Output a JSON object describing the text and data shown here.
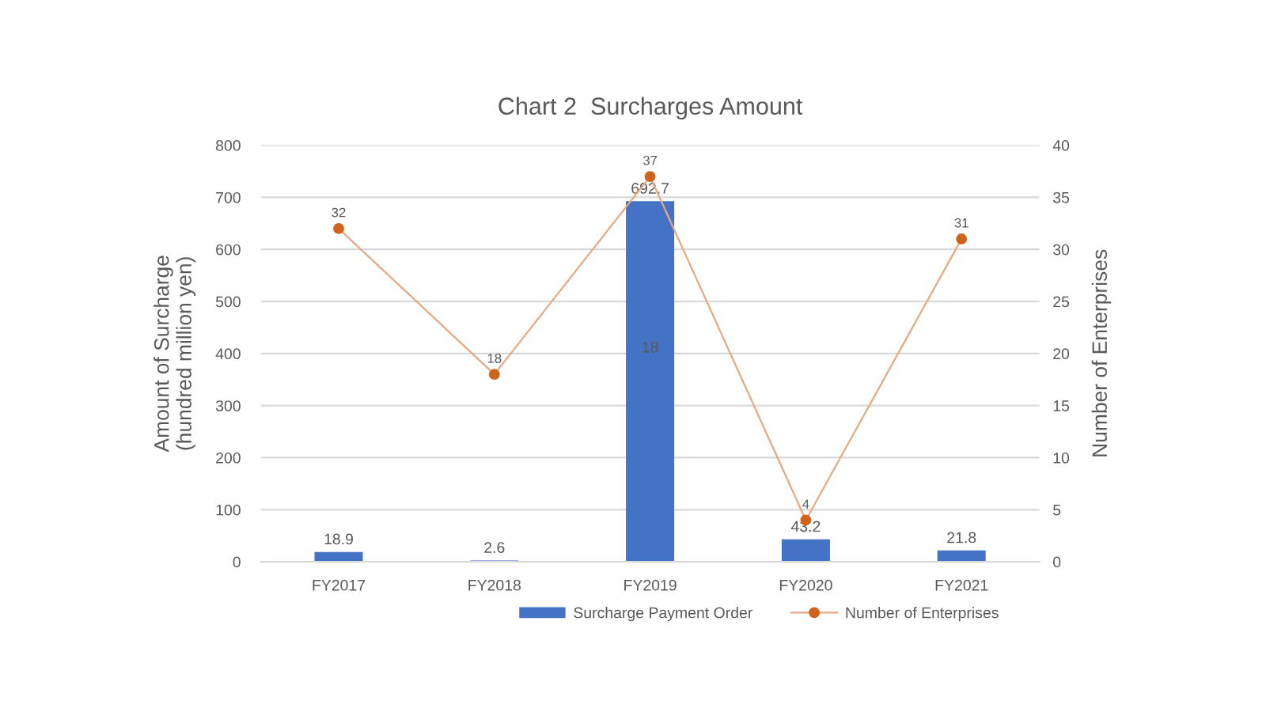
{
  "chart_data": {
    "type": "bar",
    "title": "Chart 2  Surcharges Amount",
    "ylabel": "Amount of Surcharge\n(hundred million yen)",
    "y2label": "Number of Enterprises",
    "categories": [
      "FY2017",
      "FY2018",
      "FY2019",
      "FY2020",
      "FY2021"
    ],
    "series": [
      {
        "name": "Surcharge Payment Order",
        "color": "#4472c4",
        "values": [
          18.9,
          2.6,
          692.7,
          43.2,
          21.8
        ]
      },
      {
        "name": "Number of Enterprises",
        "type": "line",
        "axis": "y2",
        "color": "#d0631b",
        "values": [
          32,
          18,
          37,
          4,
          31
        ]
      }
    ],
    "ylim": [
      0,
      800
    ],
    "yticks": [
      0,
      100,
      200,
      300,
      400,
      500,
      600,
      700,
      800
    ],
    "y2lim": [
      0,
      40
    ],
    "y2ticks": [
      0,
      5,
      10,
      15,
      20,
      25,
      30,
      35,
      40
    ],
    "grid": "y",
    "legend": "bottom",
    "marker": "circle",
    "line_style": "solid",
    "data_labels": true,
    "annotations": [
      "18"
    ]
  }
}
